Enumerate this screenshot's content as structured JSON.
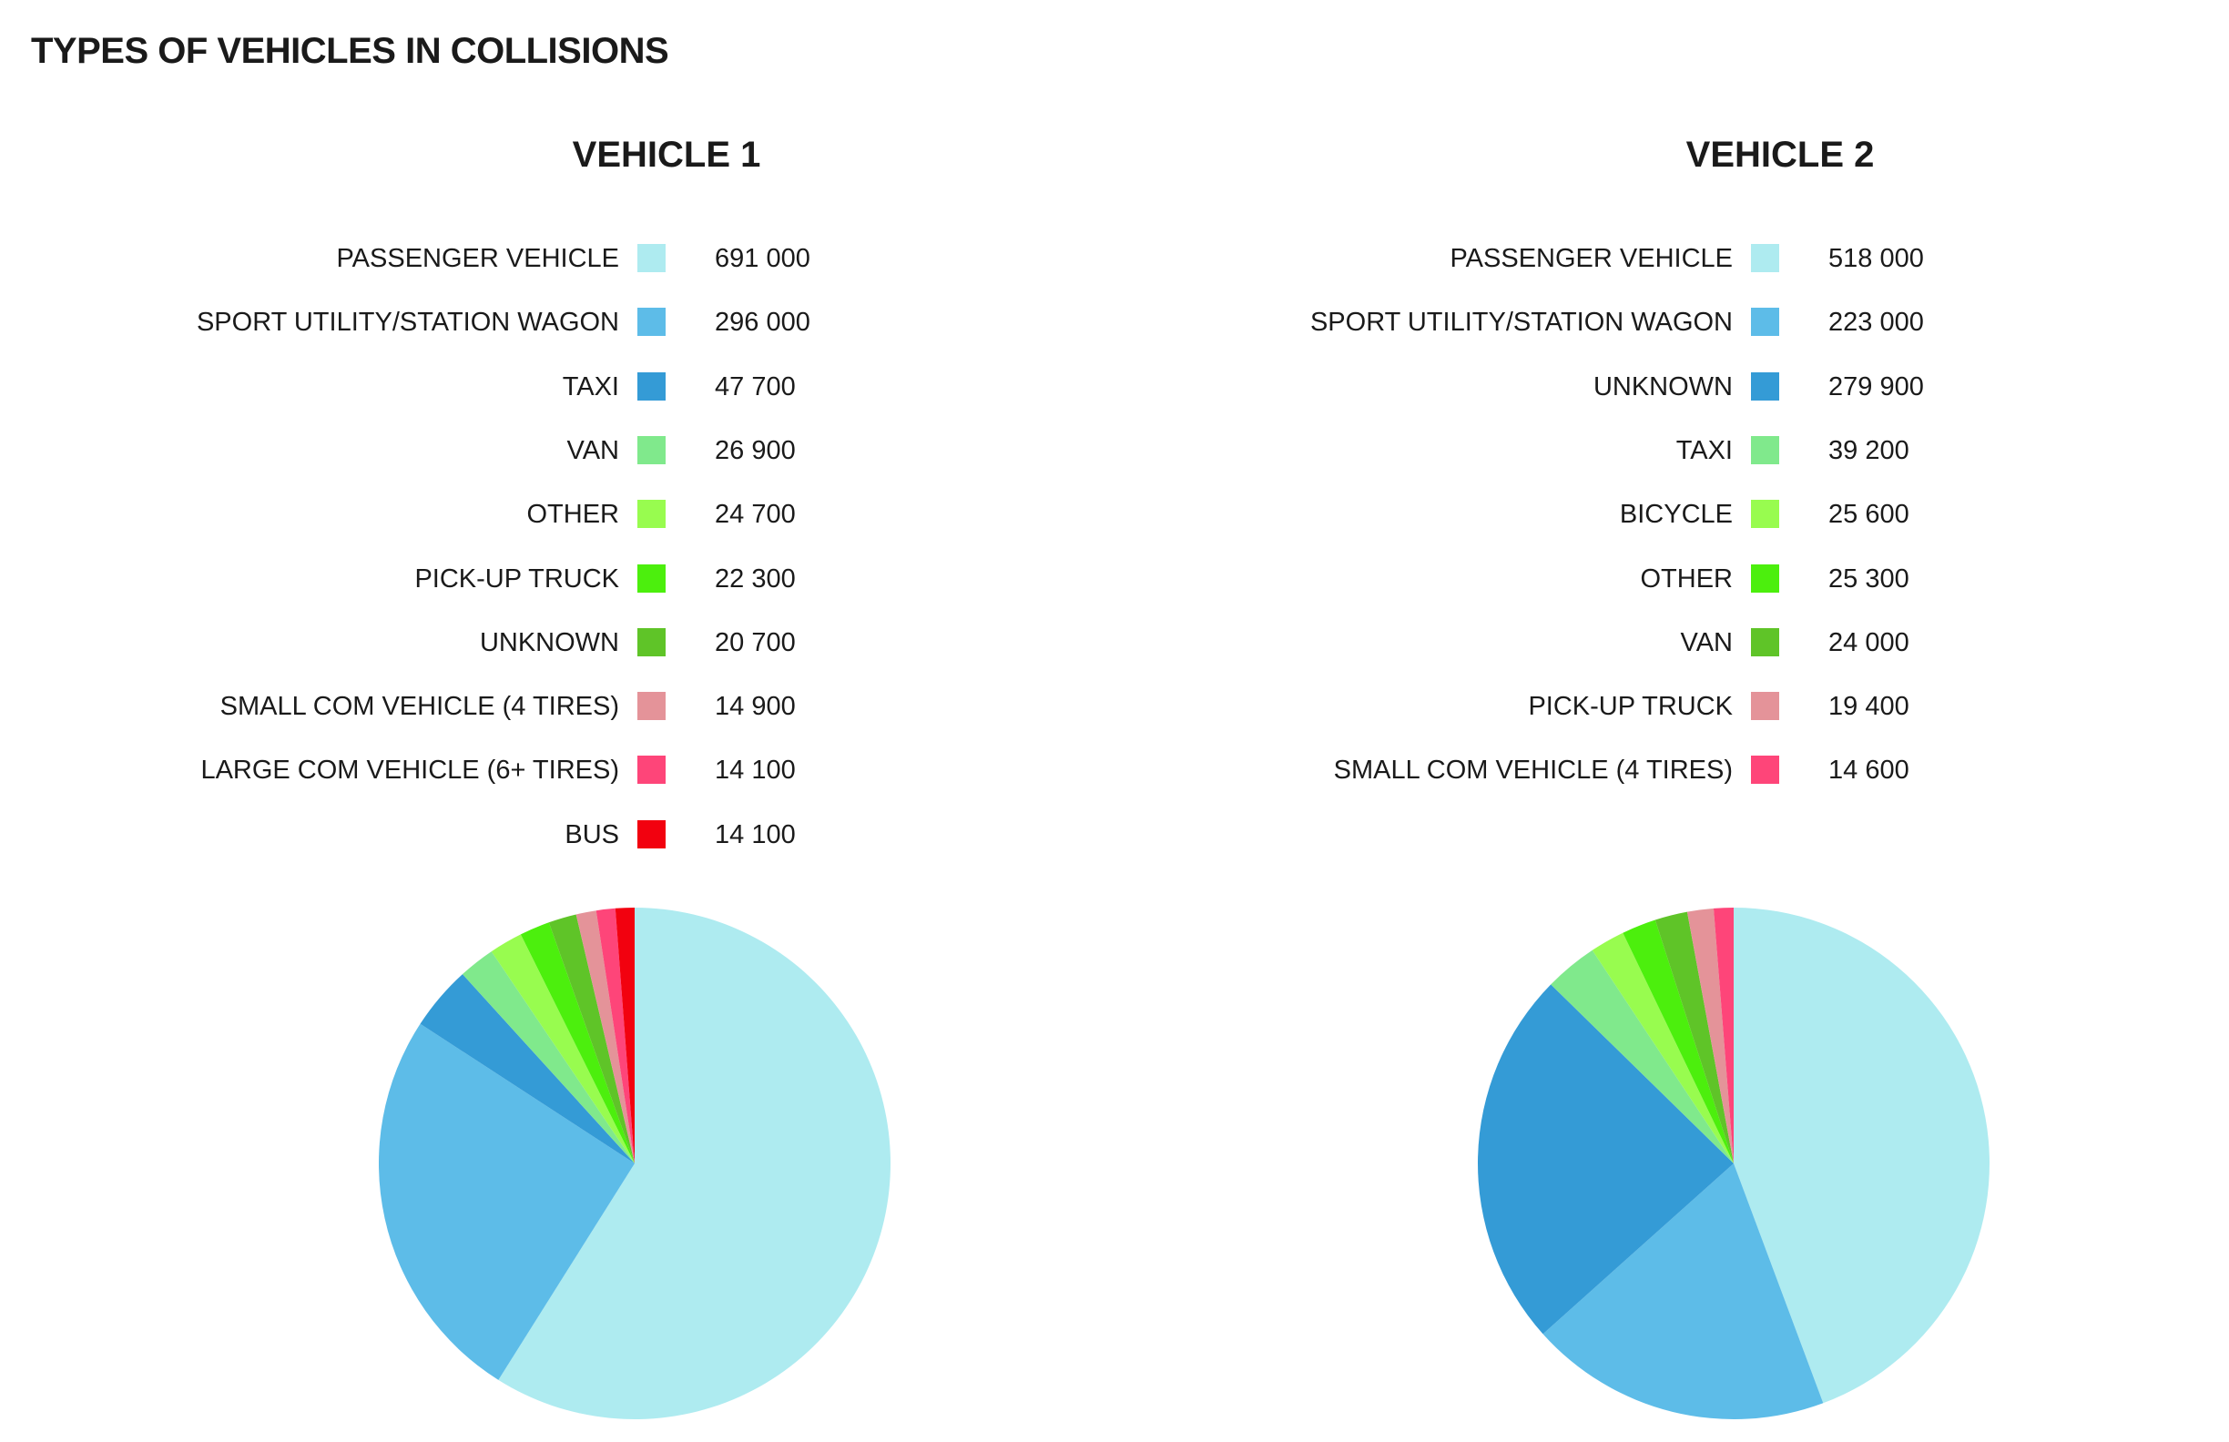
{
  "page_title": "TYPES OF VEHICLES IN COLLISIONS",
  "chart_data": [
    {
      "type": "pie",
      "title": "VEHICLE 1",
      "legend_position": "top",
      "slices": [
        {
          "label": "PASSENGER VEHICLE",
          "value": 691000,
          "value_text": "691 000",
          "color": "#aeebf0"
        },
        {
          "label": "SPORT UTILITY/STATION WAGON",
          "value": 296000,
          "value_text": "296 000",
          "color": "#5dbce8"
        },
        {
          "label": "TAXI",
          "value": 47700,
          "value_text": "47 700",
          "color": "#349bd6"
        },
        {
          "label": "VAN",
          "value": 26900,
          "value_text": "26 900",
          "color": "#80e98c"
        },
        {
          "label": "OTHER",
          "value": 24700,
          "value_text": "24 700",
          "color": "#98fc4f"
        },
        {
          "label": "PICK-UP TRUCK",
          "value": 22300,
          "value_text": "22 300",
          "color": "#4cef0d"
        },
        {
          "label": "UNKNOWN",
          "value": 20700,
          "value_text": "20 700",
          "color": "#5fc428"
        },
        {
          "label": "SMALL COM VEHICLE (4 TIRES)",
          "value": 14900,
          "value_text": "14 900",
          "color": "#e49399"
        },
        {
          "label": "LARGE COM VEHICLE (6+ TIRES)",
          "value": 14100,
          "value_text": "14 100",
          "color": "#fe4579"
        },
        {
          "label": "BUS",
          "value": 14100,
          "value_text": "14 100",
          "color": "#f2010f"
        }
      ]
    },
    {
      "type": "pie",
      "title": "VEHICLE 2",
      "legend_position": "top",
      "slices": [
        {
          "label": "PASSENGER VEHICLE",
          "value": 518000,
          "value_text": "518 000",
          "color": "#aeebf0"
        },
        {
          "label": "SPORT UTILITY/STATION WAGON",
          "value": 223000,
          "value_text": "223 000",
          "color": "#5dbce8"
        },
        {
          "label": "UNKNOWN",
          "value": 279900,
          "value_text": "279 900",
          "color": "#349bd6"
        },
        {
          "label": "TAXI",
          "value": 39200,
          "value_text": "39 200",
          "color": "#80e98c"
        },
        {
          "label": "BICYCLE",
          "value": 25600,
          "value_text": "25 600",
          "color": "#98fc4f"
        },
        {
          "label": "OTHER",
          "value": 25300,
          "value_text": "25 300",
          "color": "#4cef0d"
        },
        {
          "label": "VAN",
          "value": 24000,
          "value_text": "24 000",
          "color": "#5fc428"
        },
        {
          "label": "PICK-UP TRUCK",
          "value": 19400,
          "value_text": "19 400",
          "color": "#e49399"
        },
        {
          "label": "SMALL COM VEHICLE (4 TIRES)",
          "value": 14600,
          "value_text": "14 600",
          "color": "#fe4579"
        }
      ]
    }
  ]
}
